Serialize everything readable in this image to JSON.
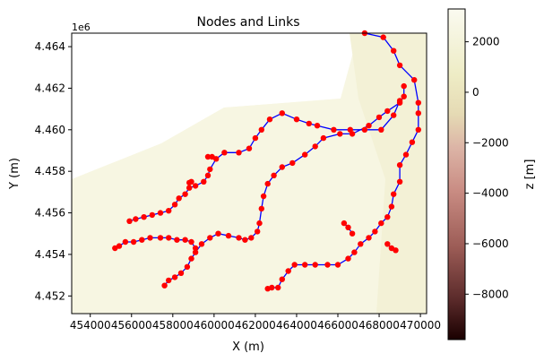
{
  "chart_data": {
    "type": "scatter",
    "title": "Nodes and Links",
    "xlabel": "X (m)",
    "ylabel": "Y (m)",
    "y_offset_label": "1e6",
    "xlim": [
      453100,
      470300
    ],
    "ylim": [
      4451150,
      4464650
    ],
    "x_ticks": [
      454000,
      456000,
      458000,
      460000,
      462000,
      464000,
      466000,
      468000,
      470000
    ],
    "x_tick_labels": [
      "454000",
      "456000",
      "458000",
      "460000",
      "462000",
      "464000",
      "466000",
      "468000",
      "470000"
    ],
    "y_ticks": [
      4452000,
      4454000,
      4456000,
      4458000,
      4460000,
      4462000,
      4464000
    ],
    "y_tick_labels": [
      "4.452",
      "4.454",
      "4.456",
      "4.458",
      "4.460",
      "4.462",
      "4.464"
    ],
    "grid": false,
    "colors": {
      "nodes": "#ff0000",
      "links": "#0000ff",
      "background": "#f8f8ea"
    },
    "colorbar": {
      "label": "z [m]",
      "range": [
        -9800,
        3300
      ],
      "ticks": [
        2000,
        0,
        -2000,
        -4000,
        -6000,
        -8000
      ],
      "tick_labels": [
        "2000",
        "0",
        "−2000",
        "−4000",
        "−6000",
        "−8000"
      ],
      "colors": [
        "#1a0000",
        "#5a2a2a",
        "#9c5c56",
        "#c98c83",
        "#dcb4a6",
        "#e5dab4",
        "#eeecc5",
        "#fafaf0"
      ]
    },
    "series": [
      {
        "points": [
          [
            467300,
            4464650
          ],
          [
            468200,
            4464450
          ],
          [
            468700,
            4463800
          ],
          [
            469000,
            4463100
          ],
          [
            469700,
            4462400
          ],
          [
            469900,
            4461300
          ],
          [
            469900,
            4460800
          ],
          [
            469900,
            4460000
          ],
          [
            469600,
            4459400
          ],
          [
            469300,
            4458800
          ],
          [
            469000,
            4458300
          ],
          [
            469000,
            4457500
          ],
          [
            468700,
            4456900
          ],
          [
            468600,
            4456300
          ],
          [
            468400,
            4455800
          ],
          [
            468100,
            4455500
          ],
          [
            467800,
            4455100
          ],
          [
            467500,
            4454800
          ],
          [
            467100,
            4454500
          ],
          [
            466800,
            4454100
          ],
          [
            466500,
            4453800
          ],
          [
            466000,
            4453500
          ],
          [
            465500,
            4453500
          ],
          [
            464900,
            4453500
          ],
          [
            464400,
            4453500
          ],
          [
            463900,
            4453500
          ],
          [
            463600,
            4453200
          ],
          [
            463300,
            4452800
          ],
          [
            463100,
            4452400
          ],
          [
            462800,
            4452400
          ],
          [
            462600,
            4452350
          ]
        ]
      },
      {
        "points": [
          [
            469000,
            4461400
          ],
          [
            468700,
            4460700
          ],
          [
            468100,
            4460000
          ],
          [
            467300,
            4460000
          ],
          [
            466600,
            4460000
          ],
          [
            465800,
            4460000
          ],
          [
            465000,
            4460200
          ],
          [
            464600,
            4460300
          ],
          [
            464000,
            4460500
          ],
          [
            463300,
            4460800
          ],
          [
            462700,
            4460500
          ],
          [
            462300,
            4460000
          ],
          [
            462000,
            4459600
          ],
          [
            461700,
            4459100
          ],
          [
            461200,
            4458900
          ],
          [
            460500,
            4458900
          ],
          [
            460100,
            4458600
          ],
          [
            459800,
            4458100
          ],
          [
            459700,
            4457800
          ],
          [
            459500,
            4457500
          ],
          [
            459100,
            4457300
          ],
          [
            458800,
            4457200
          ],
          [
            458600,
            4456900
          ],
          [
            458300,
            4456700
          ],
          [
            458100,
            4456400
          ],
          [
            457800,
            4456100
          ],
          [
            457400,
            4456000
          ],
          [
            457000,
            4455900
          ],
          [
            456600,
            4455800
          ],
          [
            456200,
            4455700
          ],
          [
            455900,
            4455600
          ]
        ]
      },
      {
        "points": [
          [
            469200,
            4462100
          ],
          [
            469200,
            4461600
          ],
          [
            469000,
            4461300
          ],
          [
            468400,
            4460900
          ],
          [
            468000,
            4460600
          ],
          [
            467500,
            4460200
          ],
          [
            466700,
            4459800
          ],
          [
            466100,
            4459800
          ],
          [
            465300,
            4459600
          ],
          [
            464900,
            4459200
          ],
          [
            464400,
            4458800
          ],
          [
            463800,
            4458400
          ],
          [
            463300,
            4458200
          ],
          [
            462900,
            4457800
          ],
          [
            462600,
            4457400
          ],
          [
            462400,
            4456800
          ],
          [
            462300,
            4456200
          ],
          [
            462200,
            4455500
          ],
          [
            462100,
            4455100
          ],
          [
            461800,
            4454800
          ],
          [
            461500,
            4454700
          ],
          [
            461200,
            4454800
          ],
          [
            460700,
            4454900
          ],
          [
            460200,
            4455000
          ],
          [
            459800,
            4454800
          ],
          [
            459400,
            4454500
          ],
          [
            459100,
            4454100
          ],
          [
            458900,
            4453800
          ],
          [
            458700,
            4453400
          ],
          [
            458400,
            4453100
          ],
          [
            458100,
            4452900
          ],
          [
            457800,
            4452750
          ],
          [
            457600,
            4452500
          ]
        ]
      },
      {
        "points": [
          [
            459900,
            4458700
          ],
          [
            459700,
            4458700
          ]
        ]
      },
      {
        "points": [
          [
            459100,
            4454300
          ],
          [
            458900,
            4454600
          ],
          [
            458600,
            4454700
          ],
          [
            458200,
            4454700
          ],
          [
            457800,
            4454800
          ],
          [
            457400,
            4454800
          ],
          [
            456900,
            4454800
          ],
          [
            456500,
            4454700
          ],
          [
            456100,
            4454600
          ],
          [
            455700,
            4454600
          ],
          [
            455400,
            4454400
          ],
          [
            455200,
            4454300
          ]
        ]
      },
      {
        "points": [
          [
            466300,
            4455500
          ],
          [
            466500,
            4455300
          ],
          [
            466700,
            4455000
          ]
        ]
      },
      {
        "points": [
          [
            468400,
            4454500
          ],
          [
            468600,
            4454300
          ],
          [
            468800,
            4454200
          ]
        ]
      },
      {
        "points": [
          [
            458900,
            4457500
          ],
          [
            458800,
            4457450
          ]
        ]
      }
    ]
  }
}
